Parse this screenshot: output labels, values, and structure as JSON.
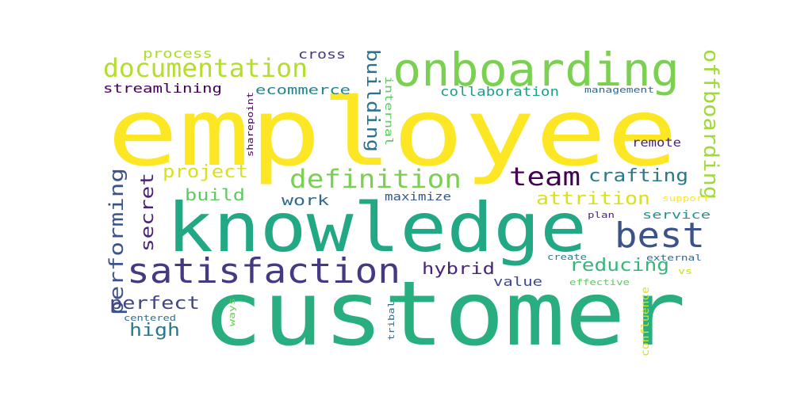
{
  "words": [
    {
      "id": "employee",
      "text": "employee",
      "color": "#fde725"
    },
    {
      "id": "customer",
      "text": "customer",
      "color": "#29af7f"
    },
    {
      "id": "knowledge",
      "text": "knowledge",
      "color": "#22a884"
    },
    {
      "id": "onboarding",
      "text": "onboarding",
      "color": "#7ad151"
    },
    {
      "id": "satisfaction",
      "text": "satisfaction",
      "color": "#443983"
    },
    {
      "id": "documentation",
      "text": "documentation",
      "color": "#b5de2b"
    },
    {
      "id": "definition",
      "text": "definition",
      "color": "#7ad151"
    },
    {
      "id": "best",
      "text": "best",
      "color": "#3b528b"
    },
    {
      "id": "team",
      "text": "team",
      "color": "#440154"
    },
    {
      "id": "crafting",
      "text": "crafting",
      "color": "#2a788e"
    },
    {
      "id": "attrition",
      "text": "attrition",
      "color": "#d8e219"
    },
    {
      "id": "offboarding",
      "text": "offboarding",
      "color": "#a0da39"
    },
    {
      "id": "building",
      "text": "building",
      "color": "#2c728e"
    },
    {
      "id": "performing",
      "text": "performing",
      "color": "#3b528b"
    },
    {
      "id": "secret",
      "text": "secret",
      "color": "#482475"
    },
    {
      "id": "project",
      "text": "project",
      "color": "#d8e219"
    },
    {
      "id": "build",
      "text": "build",
      "color": "#5ec962"
    },
    {
      "id": "work",
      "text": "work",
      "color": "#31688e"
    },
    {
      "id": "perfect",
      "text": "perfect",
      "color": "#414487"
    },
    {
      "id": "high",
      "text": "high",
      "color": "#2a788e"
    },
    {
      "id": "hybrid",
      "text": "hybrid",
      "color": "#482475"
    },
    {
      "id": "reducing",
      "text": "reducing",
      "color": "#35b779"
    },
    {
      "id": "value",
      "text": "value",
      "color": "#3e4989"
    },
    {
      "id": "streamlining",
      "text": "streamlining",
      "color": "#440154"
    },
    {
      "id": "process",
      "text": "process",
      "color": "#addc30"
    },
    {
      "id": "cross",
      "text": "cross",
      "color": "#443983"
    },
    {
      "id": "ecommerce",
      "text": "ecommerce",
      "color": "#26828e"
    },
    {
      "id": "collaboration",
      "text": "collaboration",
      "color": "#1f9e89"
    },
    {
      "id": "management",
      "text": "management",
      "color": "#31688e"
    },
    {
      "id": "internal",
      "text": "internal",
      "color": "#5ec962"
    },
    {
      "id": "sharepoint",
      "text": "sharepoint",
      "color": "#440154"
    },
    {
      "id": "remote",
      "text": "remote",
      "color": "#482878"
    },
    {
      "id": "maximize",
      "text": "maximize",
      "color": "#38588c"
    },
    {
      "id": "service",
      "text": "service",
      "color": "#21918c"
    },
    {
      "id": "support",
      "text": "support",
      "color": "#fde725"
    },
    {
      "id": "plan",
      "text": "plan",
      "color": "#482878"
    },
    {
      "id": "create",
      "text": "create",
      "color": "#2a788e"
    },
    {
      "id": "external",
      "text": "external",
      "color": "#31688e"
    },
    {
      "id": "vs",
      "text": "vs",
      "color": "#c2df23"
    },
    {
      "id": "effective",
      "text": "effective",
      "color": "#5ec962"
    },
    {
      "id": "confluence",
      "text": "confluence",
      "color": "#d8e219"
    },
    {
      "id": "centered",
      "text": "centered",
      "color": "#2e6e8e"
    },
    {
      "id": "ways",
      "text": "ways",
      "color": "#6ccd5a"
    },
    {
      "id": "tribal",
      "text": "tribal",
      "color": "#31688e"
    }
  ]
}
